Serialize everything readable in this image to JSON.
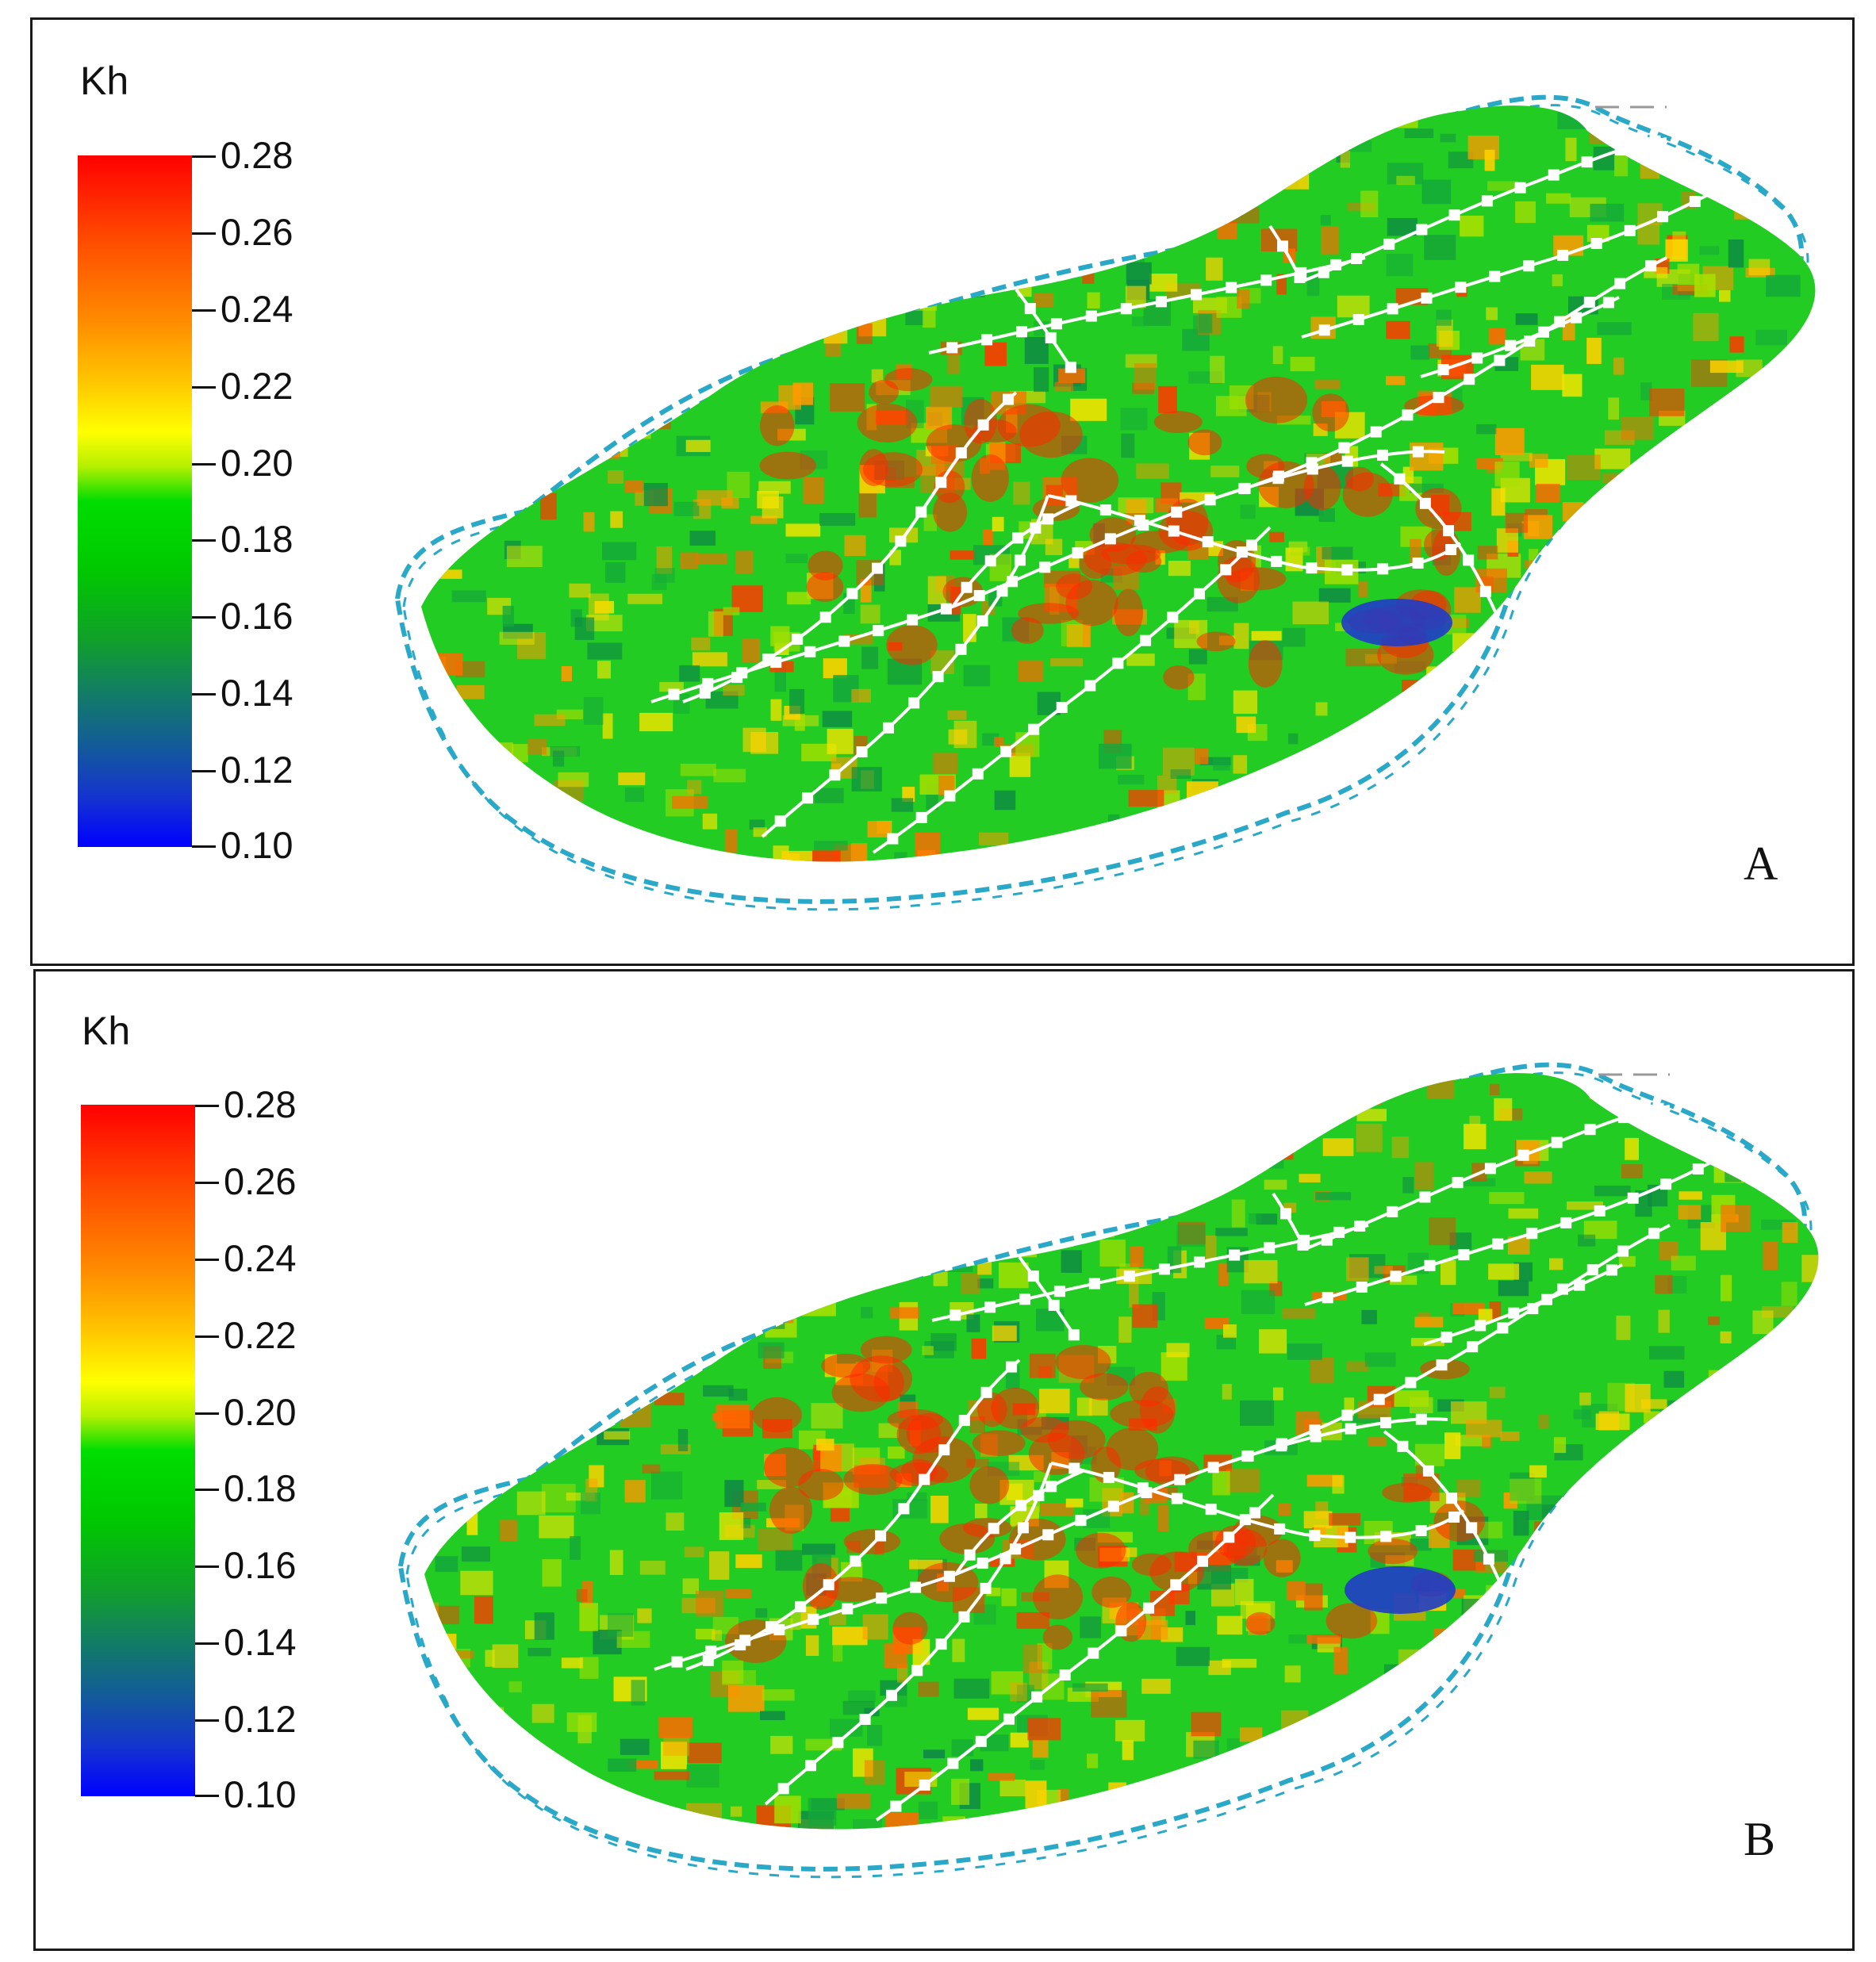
{
  "legend": {
    "title": "Kh",
    "ticks": [
      "0.28",
      "0.26",
      "0.24",
      "0.22",
      "0.20",
      "0.18",
      "0.16",
      "0.14",
      "0.12",
      "0.10"
    ],
    "colors": [
      "#ff0000",
      "#ff8c00",
      "#ffff00",
      "#00dd00",
      "#128060",
      "#0000ff"
    ]
  },
  "panels": [
    {
      "letter": "A"
    },
    {
      "letter": "B"
    }
  ],
  "colors": {
    "boundary": "#2aa8c8",
    "stream": "#ffffff",
    "low": "#1f3cc8",
    "mid": "#22cc22",
    "high": "#ff5010"
  }
}
